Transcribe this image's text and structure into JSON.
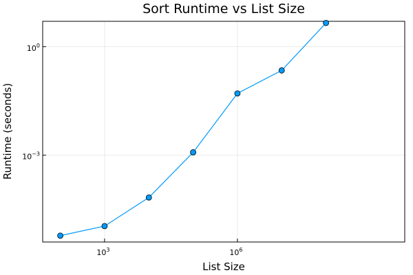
{
  "chart_data": {
    "type": "line",
    "title": "Sort Runtime vs List Size",
    "xlabel": "List Size",
    "ylabel": "Runtime (seconds)",
    "xscale": "log10",
    "yscale": "log10",
    "xlim": [
      40,
      6000000000
    ],
    "ylim": [
      4e-06,
      5
    ],
    "xticks": [
      {
        "value": 1000,
        "base": "10",
        "exp": "3"
      },
      {
        "value": 1000000,
        "base": "10",
        "exp": "6"
      }
    ],
    "yticks": [
      {
        "value": 0.001,
        "base": "10",
        "exp": "−3"
      },
      {
        "value": 1,
        "base": "10",
        "exp": "0"
      }
    ],
    "grid": true,
    "legend": "none",
    "series": [
      {
        "color": "#009af9",
        "marker": "circle",
        "x": [
          100,
          1000,
          10000,
          100000,
          1000000,
          10000000,
          100000000
        ],
        "y": [
          6e-06,
          1.1e-05,
          6.8e-05,
          0.0012,
          0.051,
          0.22,
          4.5
        ]
      }
    ]
  }
}
